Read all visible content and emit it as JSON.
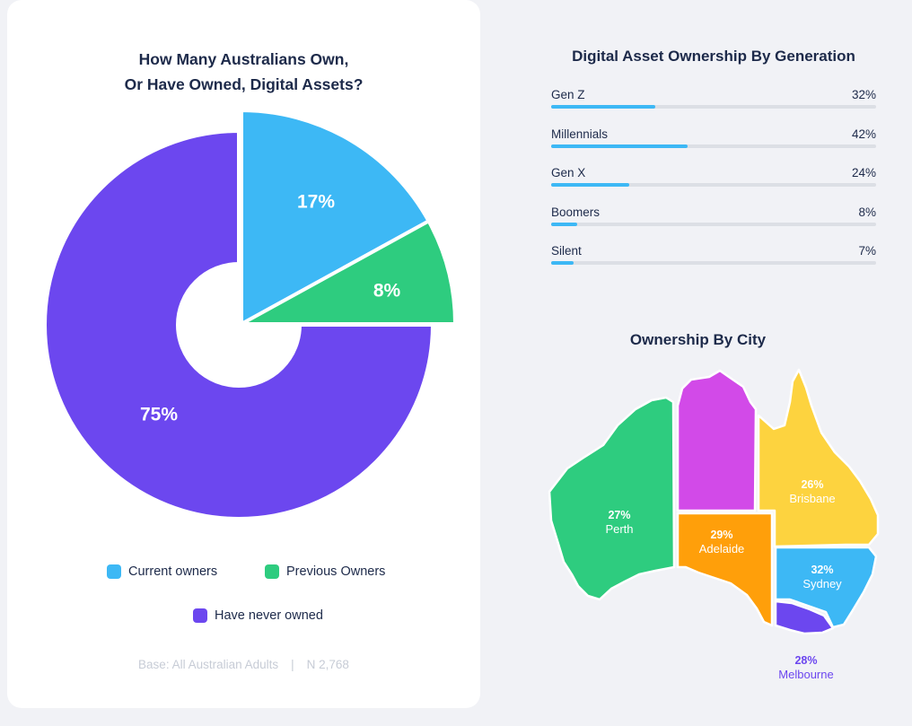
{
  "colors": {
    "current": "#3db8f5",
    "previous": "#2ecc7f",
    "never": "#6c47ef",
    "bar_fill": "#3db8f5",
    "wa": "#2ecc7f",
    "nt": "#d24ae8",
    "qld": "#fdd33f",
    "sa": "#ff9f0a",
    "nsw": "#3db8f5",
    "vic": "#6c47ef"
  },
  "left_panel": {
    "title_line1": "How Many Australians Own,",
    "title_line2": "Or Have Owned, Digital Assets?",
    "legend": [
      "Current owners",
      "Previous Owners",
      "Have never owned"
    ],
    "base_label": "Base: All Australian Adults",
    "base_separator": "|",
    "base_n": "N 2,768"
  },
  "generation_panel": {
    "title": "Digital Asset Ownership By Generation"
  },
  "city_panel": {
    "title": "Ownership By City",
    "cities": [
      {
        "percent": "27%",
        "name": "Perth"
      },
      {
        "percent": "29%",
        "name": "Adelaide"
      },
      {
        "percent": "26%",
        "name": "Brisbane"
      },
      {
        "percent": "32%",
        "name": "Sydney"
      },
      {
        "percent": "28%",
        "name": "Melbourne"
      }
    ]
  },
  "chart_data": [
    {
      "type": "pie",
      "title": "How Many Australians Own, Or Have Owned, Digital Assets?",
      "categories": [
        "Current owners",
        "Previous Owners",
        "Have never owned"
      ],
      "values": [
        17,
        8,
        75
      ],
      "labels": [
        "17%",
        "8%",
        "75%"
      ],
      "legend": "bottom"
    },
    {
      "type": "bar",
      "title": "Digital Asset Ownership By Generation",
      "categories": [
        "Gen Z",
        "Millennials",
        "Gen X",
        "Boomers",
        "Silent"
      ],
      "values": [
        32,
        42,
        24,
        8,
        7
      ],
      "labels": [
        "32%",
        "42%",
        "24%",
        "8%",
        "7%"
      ]
    }
  ]
}
